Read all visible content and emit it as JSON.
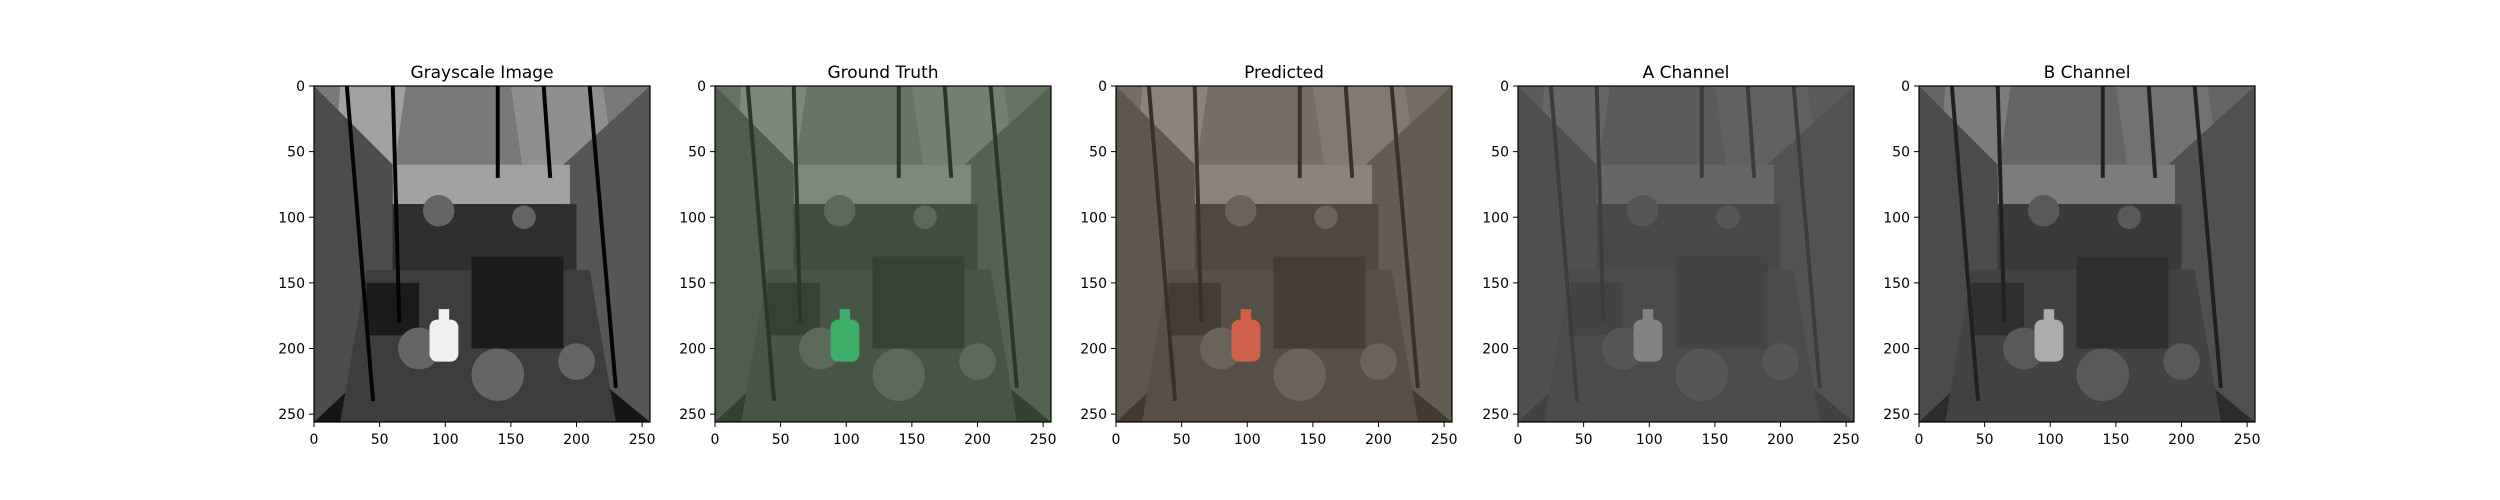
{
  "figure": {
    "background": "#ffffff"
  },
  "chart_data": [
    {
      "type": "image",
      "title": "Grayscale Image",
      "xlim": [
        0,
        256
      ],
      "ylim": [
        256,
        0
      ],
      "xticks": [
        0,
        50,
        100,
        150,
        200,
        250
      ],
      "yticks": [
        0,
        50,
        100,
        150,
        200,
        250
      ],
      "colormap": "gray",
      "content": "greenhouse interior, black-and-white"
    },
    {
      "type": "image",
      "title": "Ground Truth",
      "xlim": [
        0,
        256
      ],
      "ylim": [
        256,
        0
      ],
      "xticks": [
        0,
        50,
        100,
        150,
        200,
        250
      ],
      "yticks": [
        0,
        50,
        100,
        150,
        200,
        250
      ],
      "colormap": "rgb",
      "content": "greenhouse interior, natural color, green watering can"
    },
    {
      "type": "image",
      "title": "Predicted",
      "xlim": [
        0,
        256
      ],
      "ylim": [
        256,
        0
      ],
      "xticks": [
        0,
        50,
        100,
        150,
        200,
        250
      ],
      "yticks": [
        0,
        50,
        100,
        150,
        200,
        250
      ],
      "colormap": "rgb",
      "content": "greenhouse interior, predicted color, reddish watering can"
    },
    {
      "type": "image",
      "title": "A Channel",
      "xlim": [
        0,
        256
      ],
      "ylim": [
        256,
        0
      ],
      "xticks": [
        0,
        50,
        100,
        150,
        200,
        250
      ],
      "yticks": [
        0,
        50,
        100,
        150,
        200,
        250
      ],
      "colormap": "gray",
      "content": "blurry mid-gray channel map"
    },
    {
      "type": "image",
      "title": "B Channel",
      "xlim": [
        0,
        256
      ],
      "ylim": [
        256,
        0
      ],
      "xticks": [
        0,
        50,
        100,
        150,
        200,
        250
      ],
      "yticks": [
        0,
        50,
        100,
        150,
        200,
        250
      ],
      "colormap": "gray",
      "content": "blurry grayscale channel map"
    }
  ]
}
